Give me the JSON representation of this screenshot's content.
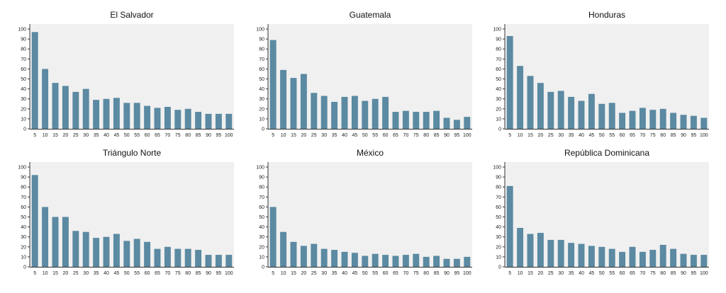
{
  "chart_data": [
    {
      "type": "bar",
      "title": "El Salvador",
      "categories": [
        "5",
        "10",
        "15",
        "20",
        "25",
        "30",
        "35",
        "40",
        "45",
        "50",
        "55",
        "60",
        "65",
        "70",
        "75",
        "80",
        "85",
        "90",
        "95",
        "100"
      ],
      "values": [
        97,
        60,
        46,
        43,
        37,
        40,
        29,
        30,
        31,
        26,
        26,
        23,
        21,
        22,
        19,
        20,
        17,
        15,
        15,
        15
      ],
      "yticks": [
        "0",
        "10",
        "20",
        "30",
        "40",
        "50",
        "60",
        "70",
        "80",
        "90",
        "100"
      ],
      "ylim": [
        0,
        105
      ],
      "grid": false,
      "bar_color": "#5b8aa2"
    },
    {
      "type": "bar",
      "title": "Guatemala",
      "categories": [
        "5",
        "10",
        "15",
        "20",
        "25",
        "30",
        "35",
        "40",
        "45",
        "50",
        "55",
        "60",
        "65",
        "70",
        "75",
        "80",
        "85",
        "90",
        "95",
        "100"
      ],
      "values": [
        89,
        59,
        51,
        55,
        36,
        33,
        27,
        32,
        33,
        28,
        30,
        32,
        17,
        18,
        17,
        17,
        18,
        11,
        9,
        12
      ],
      "yticks": [
        "0",
        "10",
        "20",
        "30",
        "40",
        "50",
        "60",
        "70",
        "80",
        "90",
        "100"
      ],
      "ylim": [
        0,
        105
      ],
      "grid": false,
      "bar_color": "#5b8aa2"
    },
    {
      "type": "bar",
      "title": "Honduras",
      "categories": [
        "5",
        "10",
        "15",
        "20",
        "25",
        "30",
        "35",
        "40",
        "45",
        "50",
        "55",
        "60",
        "65",
        "70",
        "75",
        "80",
        "85",
        "90",
        "95",
        "100"
      ],
      "values": [
        93,
        63,
        53,
        46,
        37,
        38,
        32,
        28,
        35,
        25,
        26,
        16,
        18,
        21,
        19,
        20,
        16,
        14,
        13,
        11
      ],
      "yticks": [
        "0",
        "10",
        "20",
        "30",
        "40",
        "50",
        "60",
        "70",
        "80",
        "90",
        "100"
      ],
      "ylim": [
        0,
        105
      ],
      "grid": false,
      "bar_color": "#5b8aa2"
    },
    {
      "type": "bar",
      "title": "Triángulo Norte",
      "categories": [
        "5",
        "10",
        "15",
        "20",
        "25",
        "30",
        "35",
        "40",
        "45",
        "50",
        "55",
        "60",
        "65",
        "70",
        "75",
        "80",
        "85",
        "90",
        "95",
        "100"
      ],
      "values": [
        92,
        60,
        50,
        50,
        36,
        35,
        29,
        30,
        33,
        26,
        28,
        25,
        18,
        20,
        18,
        18,
        17,
        12,
        12,
        12
      ],
      "yticks": [
        "0",
        "10",
        "20",
        "30",
        "40",
        "50",
        "60",
        "70",
        "80",
        "90",
        "100"
      ],
      "ylim": [
        0,
        105
      ],
      "grid": false,
      "bar_color": "#5b8aa2"
    },
    {
      "type": "bar",
      "title": "México",
      "categories": [
        "5",
        "10",
        "15",
        "20",
        "25",
        "30",
        "35",
        "40",
        "45",
        "50",
        "55",
        "60",
        "65",
        "70",
        "75",
        "80",
        "85",
        "90",
        "95",
        "100"
      ],
      "values": [
        60,
        35,
        25,
        21,
        23,
        18,
        17,
        15,
        14,
        11,
        13,
        12,
        11,
        12,
        13,
        10,
        11,
        8,
        8,
        10
      ],
      "yticks": [
        "0",
        "10",
        "20",
        "30",
        "40",
        "50",
        "60",
        "70",
        "80",
        "90",
        "100"
      ],
      "ylim": [
        0,
        105
      ],
      "grid": false,
      "bar_color": "#5b8aa2"
    },
    {
      "type": "bar",
      "title": "República Dominicana",
      "categories": [
        "5",
        "10",
        "15",
        "20",
        "25",
        "30",
        "35",
        "40",
        "45",
        "50",
        "55",
        "60",
        "65",
        "70",
        "75",
        "80",
        "85",
        "90",
        "95",
        "100"
      ],
      "values": [
        81,
        39,
        33,
        34,
        27,
        27,
        24,
        23,
        21,
        20,
        18,
        15,
        20,
        15,
        17,
        22,
        18,
        13,
        12,
        12
      ],
      "yticks": [
        "0",
        "10",
        "20",
        "30",
        "40",
        "50",
        "60",
        "70",
        "80",
        "90",
        "100"
      ],
      "ylim": [
        0,
        105
      ],
      "grid": false,
      "bar_color": "#5b8aa2"
    }
  ]
}
